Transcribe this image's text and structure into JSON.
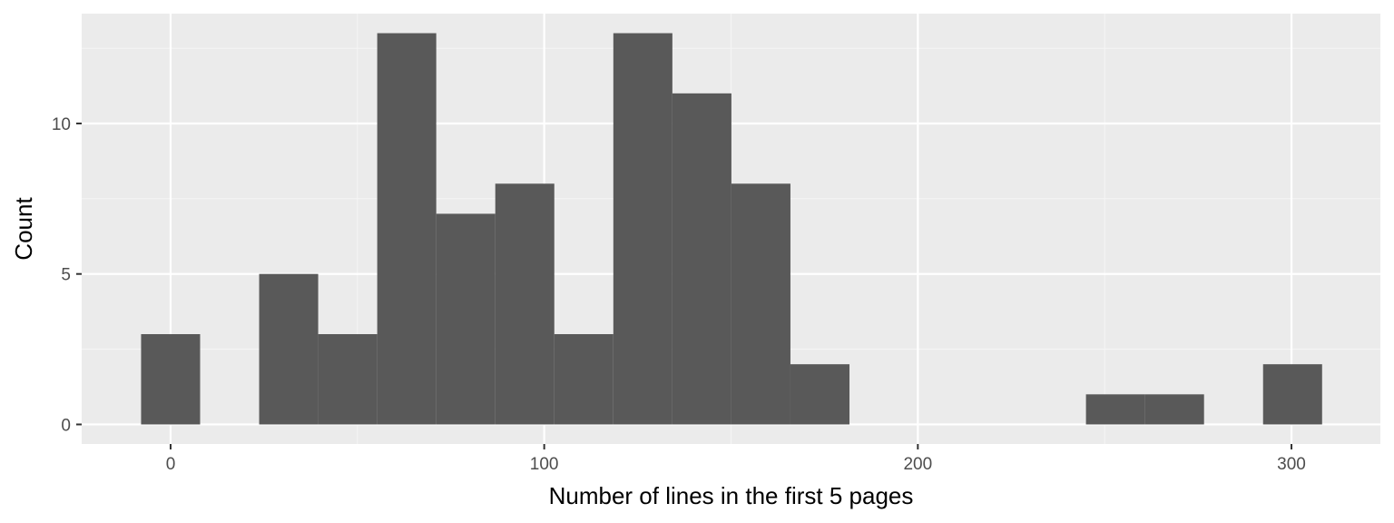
{
  "chart_data": {
    "type": "bar",
    "subtype": "histogram",
    "title": "",
    "xlabel": "Number of lines in the first 5 pages",
    "ylabel": "Count",
    "xlim": [
      -23.8,
      323.8
    ],
    "ylim": [
      -0.65,
      13.65
    ],
    "x_ticks": [
      0,
      100,
      200,
      300
    ],
    "x_minor_ticks": [
      50,
      150,
      250
    ],
    "y_ticks": [
      0,
      5,
      10
    ],
    "y_minor_ticks": [
      2.5,
      7.5,
      12.5
    ],
    "bin_width": 15.8,
    "bins": [
      {
        "x_min": -7.9,
        "x_max": 7.9,
        "count": 3
      },
      {
        "x_min": 23.7,
        "x_max": 39.5,
        "count": 5
      },
      {
        "x_min": 39.5,
        "x_max": 55.3,
        "count": 3
      },
      {
        "x_min": 55.3,
        "x_max": 71.1,
        "count": 13
      },
      {
        "x_min": 71.1,
        "x_max": 86.9,
        "count": 7
      },
      {
        "x_min": 86.9,
        "x_max": 102.7,
        "count": 8
      },
      {
        "x_min": 102.7,
        "x_max": 118.5,
        "count": 3
      },
      {
        "x_min": 118.5,
        "x_max": 134.3,
        "count": 13
      },
      {
        "x_min": 134.3,
        "x_max": 150.1,
        "count": 11
      },
      {
        "x_min": 150.1,
        "x_max": 165.9,
        "count": 8
      },
      {
        "x_min": 165.9,
        "x_max": 181.7,
        "count": 2
      },
      {
        "x_min": 245.0,
        "x_max": 260.8,
        "count": 1
      },
      {
        "x_min": 260.8,
        "x_max": 276.6,
        "count": 1
      },
      {
        "x_min": 292.4,
        "x_max": 308.2,
        "count": 2
      }
    ],
    "grid": true,
    "colors": {
      "panel_background": "#ebebeb",
      "grid_major": "#ffffff",
      "grid_minor": "#f5f5f5",
      "bar_fill": "#595959",
      "tick_label": "#4d4d4d",
      "axis_title": "#000000"
    }
  }
}
